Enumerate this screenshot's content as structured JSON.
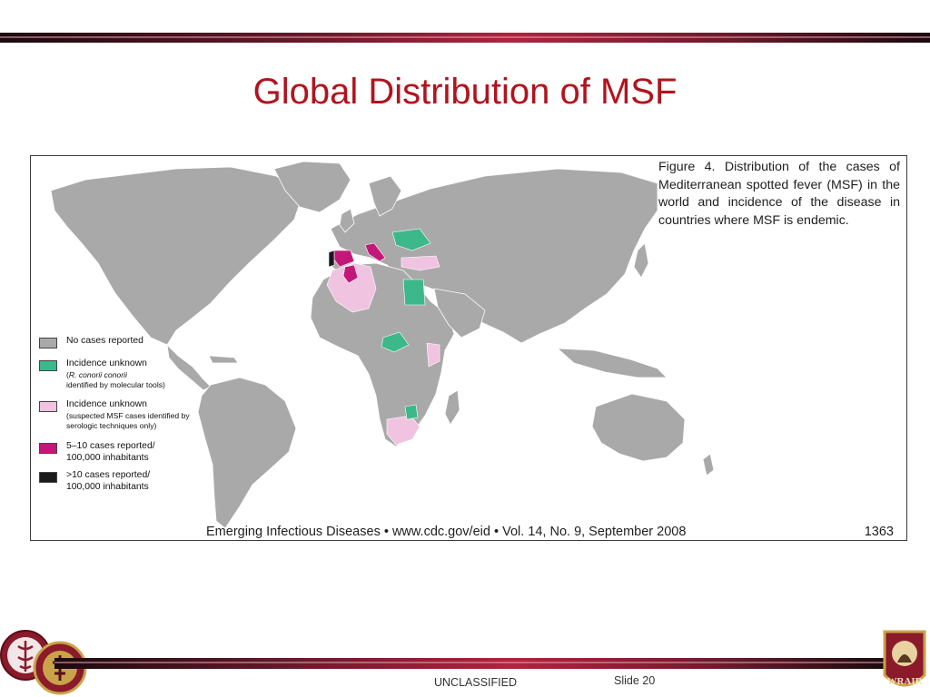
{
  "slide": {
    "title": "Global Distribution of MSF",
    "classification": "UNCLASSIFIED",
    "slide_number": "Slide 20"
  },
  "figure": {
    "caption": "Figure 4. Distribution of the cases of Mediterranean spotted fever (MSF) in the world and incidence of the disease in countries where MSF is endemic.",
    "journal_line": "Emerging Infectious Diseases • www.cdc.gov/eid • Vol. 14, No. 9, September 2008",
    "page_number": "1363"
  },
  "legend": [
    {
      "label": "No cases reported",
      "sub": "",
      "sub_italic": "",
      "sub_after": "",
      "color": "#a9a9a9"
    },
    {
      "label": "Incidence unknown",
      "sub": "(",
      "sub_italic": "R. conorii conorii",
      "sub_after": "identified by molecular tools)",
      "color": "#3cb88a"
    },
    {
      "label": "Incidence unknown",
      "sub": "(suspected MSF cases identified by serologic techniques only)",
      "sub_italic": "",
      "sub_after": "",
      "color": "#f0c4e0"
    },
    {
      "label": "5–10 cases reported/ 100,000 inhabitants",
      "sub": "",
      "sub_italic": "",
      "sub_after": "",
      "color": "#c2187a"
    },
    {
      "label": ">10 cases reported/ 100,000 inhabitants",
      "sub": "",
      "sub_italic": "",
      "sub_after": "",
      "color": "#1a1a1a"
    }
  ],
  "map_colors": {
    "land": "#a9a9a9",
    "border": "#ffffff",
    "molecular": "#3cb88a",
    "serologic": "#f0c4e0",
    "moderate": "#c2187a",
    "high": "#1a1a1a"
  },
  "logos": {
    "left_logo_1": "medical-caduceus-logo",
    "left_logo_2": "army-medical-logo",
    "right_logo": "WRAIR"
  }
}
